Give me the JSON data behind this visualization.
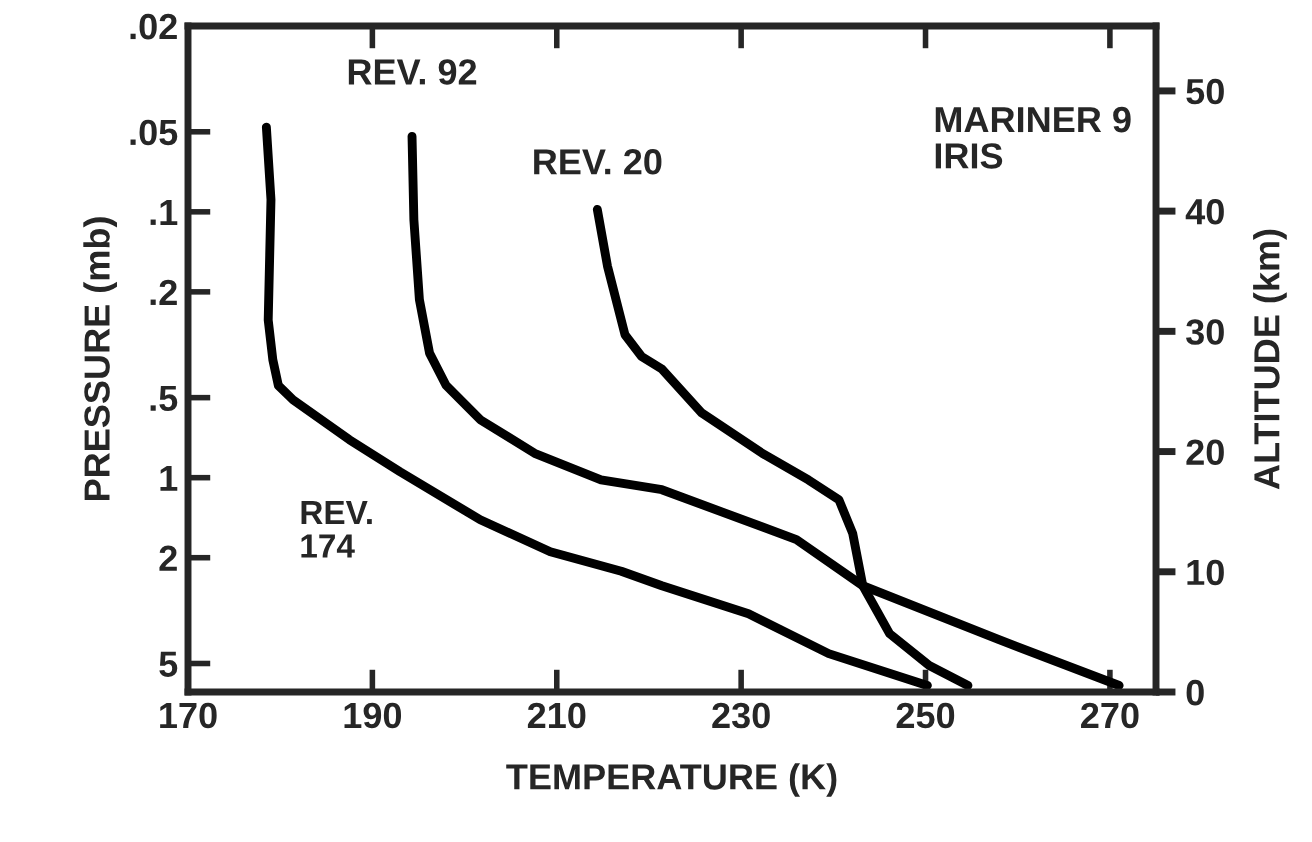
{
  "chart_data": {
    "type": "line",
    "xlabel": "TEMPERATURE (K)",
    "ylabel": "PRESSURE (mb)",
    "y2label": "ALTITUDE (km)",
    "log": "y",
    "grid": false,
    "legend": false,
    "line_style": "solid",
    "marker": "none",
    "xlim": [
      170,
      275
    ],
    "xticks": [
      170,
      190,
      210,
      230,
      250,
      270
    ],
    "ylim": [
      6.4,
      0.02
    ],
    "yticks": [
      {
        "value": 0.02,
        "label": ".02"
      },
      {
        "value": 0.05,
        "label": ".05"
      },
      {
        "value": 0.1,
        "label": ".1"
      },
      {
        "value": 0.2,
        "label": ".2"
      },
      {
        "value": 0.5,
        "label": ".5"
      },
      {
        "value": 1,
        "label": "1"
      },
      {
        "value": 2,
        "label": "2"
      },
      {
        "value": 5,
        "label": "5"
      }
    ],
    "y2lim": [
      0,
      55.4
    ],
    "y2ticks": [
      0,
      10,
      20,
      30,
      40,
      50
    ],
    "annotations": [
      "MARINER 9\nIRIS"
    ],
    "series": [
      {
        "name": "REV. 174",
        "color": "#000000",
        "x": [
          178.5,
          179.0,
          178.7,
          179.2,
          179.8,
          181.4,
          187.5,
          193.0,
          201.7,
          209.3,
          217.0,
          221.4,
          230.8,
          239.5,
          250.2
        ],
        "values": [
          0.048,
          0.09,
          0.255,
          0.36,
          0.45,
          0.51,
          0.72,
          0.95,
          1.44,
          1.9,
          2.25,
          2.55,
          3.25,
          4.59,
          6.05
        ]
      },
      {
        "name": "REV. 92",
        "color": "#000000",
        "x": [
          194.3,
          194.5,
          195.1,
          196.2,
          198.0,
          201.7,
          207.6,
          214.8,
          221.4,
          236.0,
          243.2,
          257.9,
          271.0
        ],
        "values": [
          0.052,
          0.107,
          0.214,
          0.34,
          0.45,
          0.605,
          0.81,
          1.02,
          1.11,
          1.71,
          2.55,
          4.06,
          6.05
        ]
      },
      {
        "name": "REV. 20",
        "color": "#000000",
        "x": [
          214.4,
          215.5,
          217.4,
          219.2,
          221.4,
          225.7,
          232.3,
          237.3,
          240.6,
          242.1,
          243.2,
          246.1,
          250.4,
          254.6
        ],
        "values": [
          0.098,
          0.16,
          0.29,
          0.35,
          0.39,
          0.57,
          0.81,
          1.02,
          1.21,
          1.62,
          2.55,
          3.86,
          5.09,
          6.05
        ]
      }
    ]
  }
}
